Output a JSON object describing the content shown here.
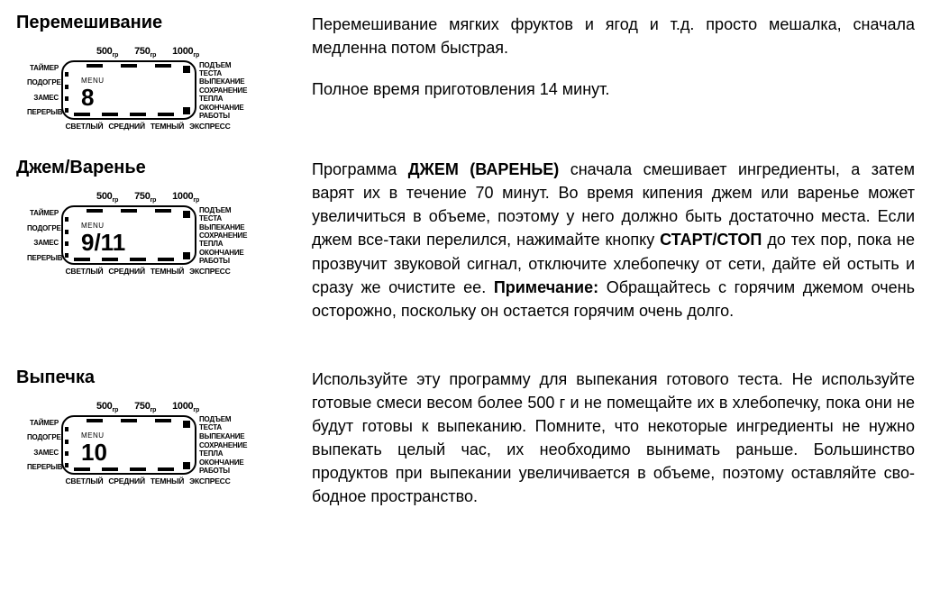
{
  "display": {
    "weight_labels": [
      "500",
      "750",
      "1000"
    ],
    "weight_unit": "гр",
    "left_labels": [
      "ТАЙМЕР",
      "ПОДОГРЕВ",
      "ЗАМЕС",
      "ПЕРЕРЫВ"
    ],
    "right_labels": [
      "ПОДЪЕМ ТЕСТА",
      "ВЫПЕКАНИЕ",
      "СОХРАНЕНИЕ ТЕПЛА",
      "ОКОНЧАНИЕ РАБОТЫ"
    ],
    "bottom_labels": [
      "СВЕТЛЫЙ",
      "СРЕДНИЙ",
      "ТЕМНЫЙ",
      "ЭКСПРЕСС"
    ],
    "menu_word": "MENU"
  },
  "sections": [
    {
      "title": "Перемешивание",
      "menu_number": "8",
      "desc_p1": "Перемешивание мягких фруктов и ягод и т.д. просто мешалка, сначала медленна потом быстрая.",
      "desc_p2": "Полное время приготовления 14 минут."
    },
    {
      "title": "Джем/Варенье",
      "menu_number": "9/11",
      "desc_pre1": "Программа ",
      "desc_bold1": "ДЖЕМ (ВАРЕНЬЕ)",
      "desc_mid1": " сначала смешивает ингреди­енты, а затем варят их в течение 70 минут. Во время кипе­ния джем или варенье может увеличиться в объеме, поэтому у него должно быть достаточно места. Если джем все-таки перелился, нажимайте кнопку ",
      "desc_bold2": "СТАРТ/СТОП",
      "desc_mid2": "  до тех пор, пока не прозвучит звуковой сигнал, отключите хлебопечку от сети, дайте ей остыть и сразу же очистите ее. ",
      "desc_bold3": "Примечание:",
      "desc_end": " Обра­щайтесь с горячим джемом очень осторожно, поскольку он ос­тается горячим очень долго."
    },
    {
      "title": "Выпечка",
      "menu_number": "10",
      "desc_p1": "Используйте эту программу для выпекания готового теста. Не используйте готовые смеси весом более 500 г и не помещайте их в хлебопечку, пока они не будут готовы к выпеканию. Помни­те, что некоторые ингредиенты не нужно выпекать целый час, их необходимо вынимать раньше. Большинство продуктов при выпекании увеличивается в объеме, поэтому оставляйте сво­бодное пространство."
    }
  ]
}
